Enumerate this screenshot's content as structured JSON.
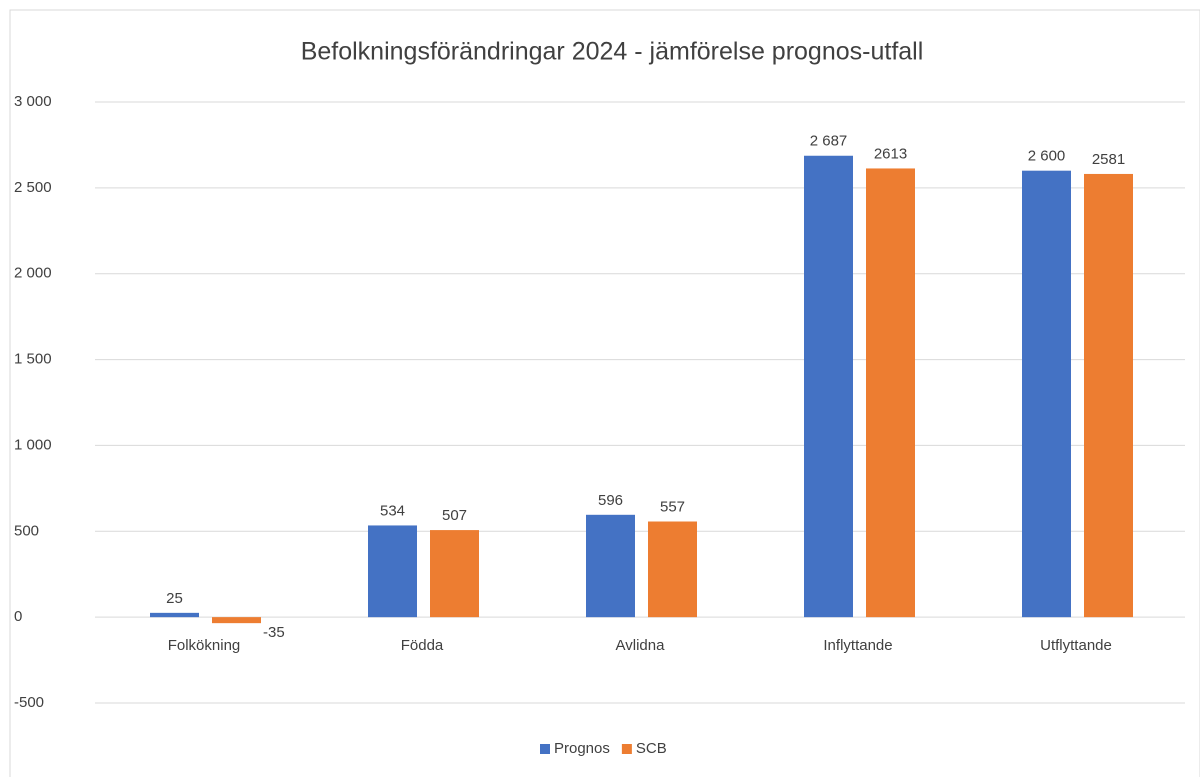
{
  "chart_data": {
    "type": "bar",
    "title": "Befolkningsförändringar 2024 - jämförelse prognos-utfall",
    "categories": [
      "Folkökning",
      "Födda",
      "Avlidna",
      "Inflyttande",
      "Utflyttande"
    ],
    "series": [
      {
        "name": "Prognos",
        "color": "#4472c4",
        "values": [
          25,
          534,
          596,
          2687,
          2600
        ],
        "value_labels": [
          "25",
          "534",
          "596",
          "2 687",
          "2 600"
        ]
      },
      {
        "name": "SCB",
        "color": "#ed7d31",
        "values": [
          -35,
          507,
          557,
          2613,
          2581
        ]
      }
    ],
    "ylim": [
      -500,
      3000
    ],
    "yticks": [
      -500,
      0,
      500,
      {
        "value": 1000,
        "label": "1 000"
      },
      {
        "value": 1500,
        "label": "1 500"
      },
      {
        "value": 2000,
        "label": "2 000"
      },
      {
        "value": 2500,
        "label": "2 500"
      },
      {
        "value": 3000,
        "label": "3 000"
      }
    ],
    "grid": true,
    "legend": "bottom"
  }
}
